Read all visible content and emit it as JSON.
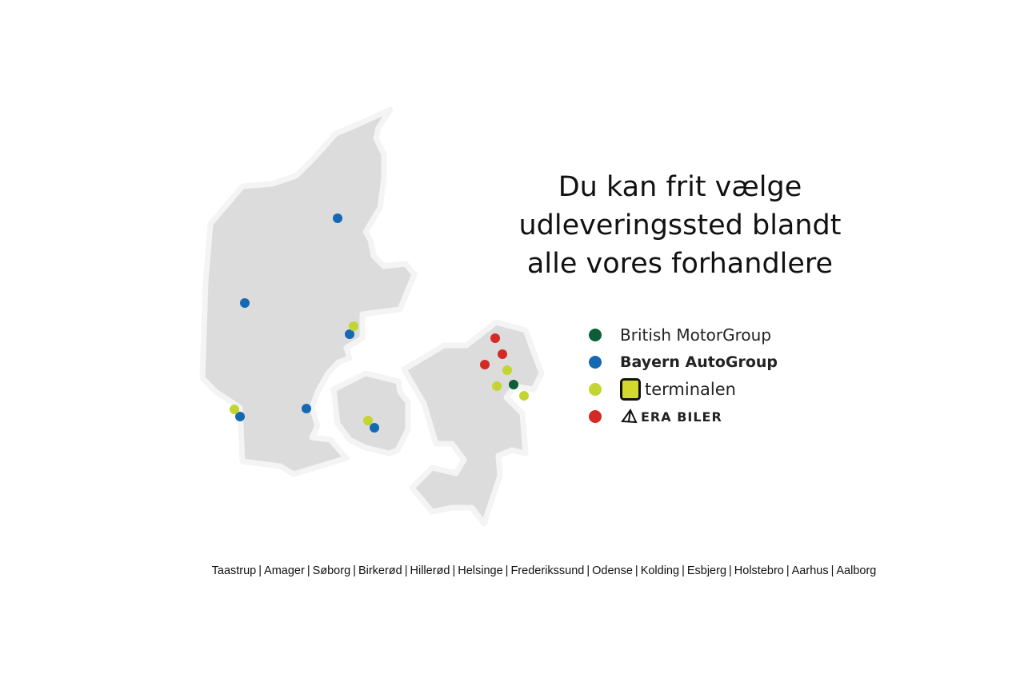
{
  "headline": {
    "line1": "Du kan frit vælge",
    "line2": "udleveringssted blandt",
    "line3": "alle vores forhandlere"
  },
  "legend": [
    {
      "label": "British MotorGroup",
      "color": "#0b5e36"
    },
    {
      "label": "Bayern AutoGroup",
      "color": "#1568b3"
    },
    {
      "label": "terminalen",
      "color": "#c3d530"
    },
    {
      "label": "ERA BILER",
      "color": "#d42a26"
    }
  ],
  "map": {
    "land_color": "#dcdcdc",
    "regions": [
      "Jylland",
      "Fyn",
      "Sjælland"
    ],
    "locations": [
      {
        "dealer": "Bayern AutoGroup",
        "region": "Jylland"
      },
      {
        "dealer": "Bayern AutoGroup",
        "region": "Jylland"
      },
      {
        "dealer": "Bayern AutoGroup",
        "region": "Jylland"
      },
      {
        "dealer": "Bayern AutoGroup",
        "region": "Jylland"
      },
      {
        "dealer": "Bayern AutoGroup",
        "region": "Jylland"
      },
      {
        "dealer": "Bayern AutoGroup",
        "region": "Fyn"
      },
      {
        "dealer": "terminalen",
        "region": "Jylland"
      },
      {
        "dealer": "terminalen",
        "region": "Jylland"
      },
      {
        "dealer": "terminalen",
        "region": "Fyn"
      },
      {
        "dealer": "terminalen",
        "region": "Sjælland"
      },
      {
        "dealer": "terminalen",
        "region": "Sjælland"
      },
      {
        "dealer": "terminalen",
        "region": "Sjælland"
      },
      {
        "dealer": "ERA BILER",
        "region": "Sjælland"
      },
      {
        "dealer": "ERA BILER",
        "region": "Sjælland"
      },
      {
        "dealer": "ERA BILER",
        "region": "Sjælland"
      },
      {
        "dealer": "British MotorGroup",
        "region": "Sjælland"
      }
    ]
  },
  "cities": [
    "Taastrup",
    "Amager",
    "Søborg",
    "Birkerød",
    "Hillerød",
    "Helsinge",
    "Frederikssund",
    "Odense",
    "Kolding",
    "Esbjerg",
    "Holstebro",
    "Aarhus",
    "Aalborg"
  ]
}
